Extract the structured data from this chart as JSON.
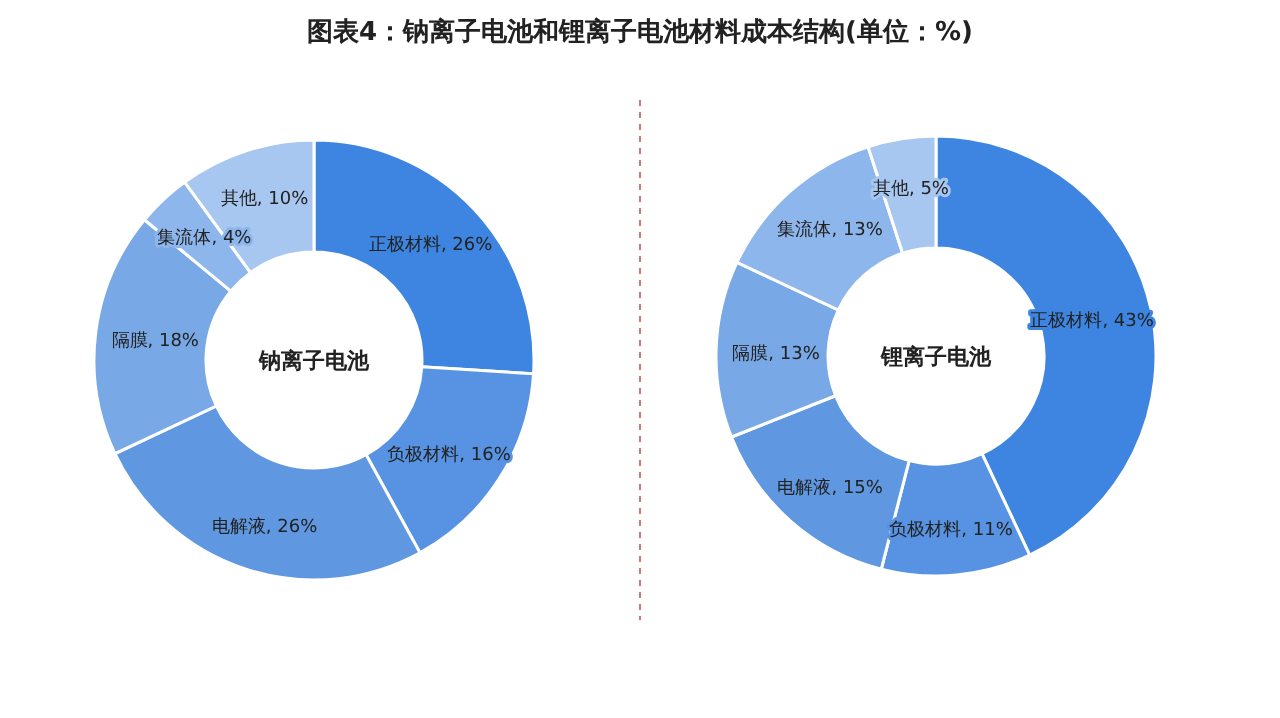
{
  "chart_data": [
    {
      "type": "donut",
      "title": "钠离子电池",
      "annotations": [
        "图表4：钠离子电池和锂离子电池材料成本结构(单位：%)"
      ],
      "categories": [
        "正极材料",
        "负极材料",
        "电解液",
        "隔膜",
        "集流体",
        "其他"
      ],
      "values": [
        26,
        16,
        26,
        18,
        4,
        10
      ],
      "value_labels": [
        "26%",
        "16%",
        "26%",
        "18%",
        "4%",
        "10%"
      ],
      "colors": [
        "#3d85e0",
        "#5793e2",
        "#5f98e0",
        "#78a8e6",
        "#8db6ec",
        "#a8c7f0"
      ]
    },
    {
      "type": "donut",
      "title": "锂离子电池",
      "categories": [
        "正极材料",
        "负极材料",
        "电解液",
        "隔膜",
        "集流体",
        "其他"
      ],
      "values": [
        43,
        11,
        15,
        13,
        13,
        5
      ],
      "value_labels": [
        "43%",
        "11%",
        "15%",
        "13%",
        "13%",
        "5%"
      ],
      "colors": [
        "#3d85e0",
        "#5793e2",
        "#5f98e0",
        "#78a8e6",
        "#8db6ec",
        "#a8c7f0"
      ]
    }
  ]
}
